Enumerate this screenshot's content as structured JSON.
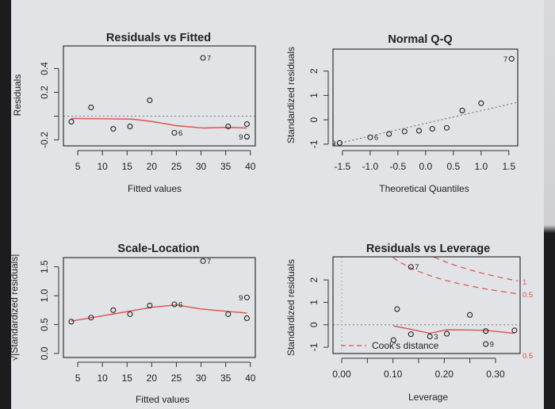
{
  "colors": {
    "points": "#222222",
    "smoother": "#d9534f",
    "reference": "#777777",
    "cooks": "#d9534f",
    "background": "#e2e3e6"
  },
  "chart_data": [
    {
      "type": "scatter",
      "title": "Residuals vs Fitted",
      "xlabel": "Fitted values",
      "ylabel": "Residuals",
      "xlim": [
        2.1,
        41
      ],
      "ylim": [
        -0.25,
        0.59
      ],
      "xticks": [
        5,
        10,
        15,
        20,
        25,
        30,
        35,
        40
      ],
      "xtick_labels": [
        "5",
        "10",
        "15",
        "20",
        "25",
        "30",
        "35",
        "40"
      ],
      "yticks": [
        -0.2,
        0.0,
        0.2,
        0.4
      ],
      "ytick_labels": [
        "-0.2",
        "",
        "0.2",
        "0.4"
      ],
      "hline": 0,
      "points": [
        {
          "x": 3.7,
          "y": -0.047,
          "label": ""
        },
        {
          "x": 7.7,
          "y": 0.073,
          "label": ""
        },
        {
          "x": 12.2,
          "y": -0.107,
          "label": ""
        },
        {
          "x": 15.6,
          "y": -0.087,
          "label": ""
        },
        {
          "x": 19.6,
          "y": 0.133,
          "label": ""
        },
        {
          "x": 24.6,
          "y": -0.14,
          "label": "6"
        },
        {
          "x": 30.4,
          "y": 0.49,
          "label": "7"
        },
        {
          "x": 35.5,
          "y": -0.087,
          "label": ""
        },
        {
          "x": 39.3,
          "y": -0.067,
          "label": ""
        },
        {
          "x": 39.3,
          "y": -0.173,
          "label": "9"
        }
      ],
      "smoother": [
        [
          3.7,
          -0.02
        ],
        [
          10,
          -0.022
        ],
        [
          16,
          -0.025
        ],
        [
          20,
          -0.045
        ],
        [
          25,
          -0.08
        ],
        [
          30.4,
          -0.1
        ],
        [
          35.5,
          -0.095
        ],
        [
          39.3,
          -0.1
        ]
      ]
    },
    {
      "type": "scatter",
      "title": "Normal Q-Q",
      "xlabel": "Theoretical Quantiles",
      "ylabel": "Standardized residuals",
      "xlim": [
        -1.67,
        1.66
      ],
      "ylim": [
        -1.07,
        2.9
      ],
      "xticks": [
        -1.5,
        -1.0,
        -0.5,
        0.0,
        0.5,
        1.0,
        1.5
      ],
      "xtick_labels": [
        "-1.5",
        "-1.0",
        "-0.5",
        "0.0",
        "0.5",
        "1.0",
        "1.5"
      ],
      "yticks": [
        -1,
        0,
        1,
        2
      ],
      "ytick_labels": [
        "-1",
        "0",
        "1",
        "2"
      ],
      "points": [
        {
          "x": -1.55,
          "y": -0.95,
          "label": "9"
        },
        {
          "x": -1.0,
          "y": -0.72,
          "label": "6"
        },
        {
          "x": -0.66,
          "y": -0.58,
          "label": ""
        },
        {
          "x": -0.38,
          "y": -0.48,
          "label": ""
        },
        {
          "x": -0.12,
          "y": -0.45,
          "label": ""
        },
        {
          "x": 0.12,
          "y": -0.37,
          "label": ""
        },
        {
          "x": 0.38,
          "y": -0.33,
          "label": ""
        },
        {
          "x": 0.66,
          "y": 0.38,
          "label": ""
        },
        {
          "x": 1.0,
          "y": 0.68,
          "label": ""
        },
        {
          "x": 1.55,
          "y": 2.5,
          "label": "7"
        }
      ],
      "qqline": [
        [
          -1.67,
          -1.02
        ],
        [
          1.66,
          0.72
        ]
      ]
    },
    {
      "type": "scatter",
      "title": "Scale-Location",
      "xlabel": "Fitted values",
      "ylabel": "√|Standardized residuals|",
      "xlim": [
        2.1,
        41
      ],
      "ylim": [
        -0.07,
        1.66
      ],
      "xticks": [
        5,
        10,
        15,
        20,
        25,
        30,
        35,
        40
      ],
      "xtick_labels": [
        "5",
        "10",
        "15",
        "20",
        "25",
        "30",
        "35",
        "40"
      ],
      "yticks": [
        0.0,
        0.5,
        1.0,
        1.5
      ],
      "ytick_labels": [
        "0.0",
        "0.5",
        "1.0",
        "1.5"
      ],
      "points": [
        {
          "x": 3.7,
          "y": 0.55,
          "label": ""
        },
        {
          "x": 7.7,
          "y": 0.62,
          "label": ""
        },
        {
          "x": 12.2,
          "y": 0.75,
          "label": ""
        },
        {
          "x": 15.6,
          "y": 0.68,
          "label": ""
        },
        {
          "x": 19.6,
          "y": 0.83,
          "label": ""
        },
        {
          "x": 24.6,
          "y": 0.85,
          "label": "6"
        },
        {
          "x": 30.4,
          "y": 1.6,
          "label": "7"
        },
        {
          "x": 35.5,
          "y": 0.68,
          "label": ""
        },
        {
          "x": 39.3,
          "y": 0.61,
          "label": ""
        },
        {
          "x": 39.3,
          "y": 0.97,
          "label": "9"
        }
      ],
      "smoother": [
        [
          3.7,
          0.56
        ],
        [
          12,
          0.68
        ],
        [
          20,
          0.8
        ],
        [
          25,
          0.84
        ],
        [
          30,
          0.77
        ],
        [
          35,
          0.73
        ],
        [
          39.3,
          0.7
        ]
      ]
    },
    {
      "type": "scatter",
      "title": "Residuals vs Leverage",
      "xlabel": "Leverage",
      "ylabel": "Standardized residuals",
      "xlim": [
        -0.017,
        0.348
      ],
      "ylim": [
        -1.28,
        3.03
      ],
      "xticks": [
        0.0,
        0.05,
        0.1,
        0.15,
        0.2,
        0.25,
        0.3
      ],
      "xtick_labels": [
        "0.00",
        "",
        "0.10",
        "",
        "0.20",
        "",
        "0.30"
      ],
      "yticks": [
        -1,
        0,
        1,
        2
      ],
      "ytick_labels": [
        "-1",
        "0",
        "1",
        "2"
      ],
      "hline": 0,
      "vline": 0,
      "points": [
        {
          "x": 0.101,
          "y": -0.68,
          "label": ""
        },
        {
          "x": 0.108,
          "y": 0.7,
          "label": ""
        },
        {
          "x": 0.135,
          "y": -0.42,
          "label": ""
        },
        {
          "x": 0.172,
          "y": -0.52,
          "label": "3"
        },
        {
          "x": 0.135,
          "y": 2.58,
          "label": "7"
        },
        {
          "x": 0.205,
          "y": -0.4,
          "label": ""
        },
        {
          "x": 0.25,
          "y": 0.44,
          "label": ""
        },
        {
          "x": 0.281,
          "y": -0.28,
          "label": ""
        },
        {
          "x": 0.281,
          "y": -0.86,
          "label": "9"
        },
        {
          "x": 0.337,
          "y": -0.25,
          "label": ""
        }
      ],
      "smoother": [
        [
          0.101,
          -0.05
        ],
        [
          0.135,
          -0.2
        ],
        [
          0.172,
          -0.38
        ],
        [
          0.205,
          -0.22
        ],
        [
          0.25,
          -0.23
        ],
        [
          0.281,
          -0.25
        ],
        [
          0.337,
          -0.38
        ]
      ],
      "cooks_levels": [
        0.5,
        1
      ],
      "cooks_labels": [
        "0.5",
        "1",
        "0.5"
      ],
      "legend": "Cook's distance",
      "legend_position": "bottom-left"
    }
  ]
}
